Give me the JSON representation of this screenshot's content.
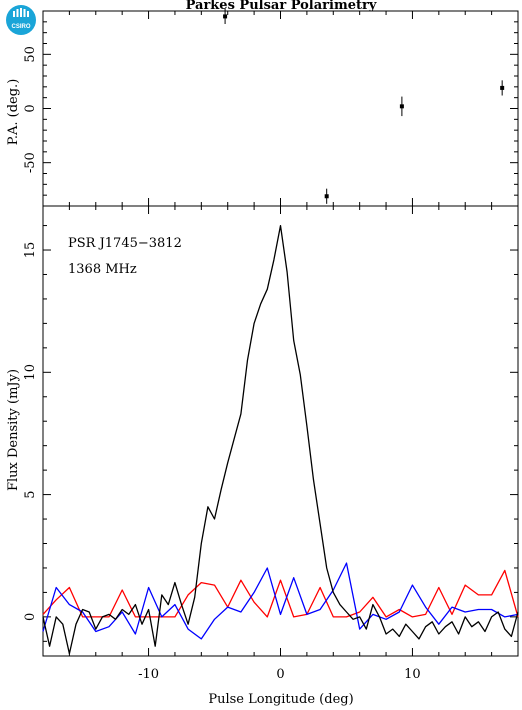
{
  "logo": {
    "text": "CSIRO",
    "color": "#1aa5d8"
  },
  "title": "Parkes Pulsar Polarimetry",
  "colors": {
    "total_intensity": "#000000",
    "linear": "#ff0000",
    "circular": "#0000ff"
  },
  "chart_data": [
    {
      "type": "scatter",
      "ylabel": "P.A. (deg.)",
      "xlim": [
        -18,
        18
      ],
      "ylim": [
        -90,
        90
      ],
      "yticks": [
        "-50",
        "0",
        "50"
      ],
      "points": [
        {
          "x": -4.2,
          "y": 85,
          "err": 7
        },
        {
          "x": 3.5,
          "y": -81,
          "err": 7
        },
        {
          "x": 9.2,
          "y": 2,
          "err": 9
        },
        {
          "x": 16.8,
          "y": 19,
          "err": 7
        }
      ]
    },
    {
      "type": "line",
      "xlabel": "Pulse Longitude (deg)",
      "ylabel": "Flux Density (mJy)",
      "xlim": [
        -18,
        18
      ],
      "ylim": [
        -1.6,
        16.8
      ],
      "xticks": [
        "-10",
        "0",
        "10"
      ],
      "yticks": [
        "0",
        "5",
        "10",
        "15"
      ],
      "annotations": [
        "PSR J1745−3812",
        "1368 MHz"
      ],
      "series": [
        {
          "color": "#000000",
          "x": [
            -18,
            -17.5,
            -17,
            -16.5,
            -16,
            -15.5,
            -15,
            -14.5,
            -14,
            -13.5,
            -13,
            -12.5,
            -12,
            -11.5,
            -11,
            -10.5,
            -10,
            -9.5,
            -9,
            -8.5,
            -8,
            -7.5,
            -7,
            -6.5,
            -6,
            -5.5,
            -5,
            -4.5,
            -4,
            -3.5,
            -3,
            -2.5,
            -2,
            -1.5,
            -1,
            -0.5,
            0,
            0.5,
            1,
            1.5,
            2,
            2.5,
            3,
            3.5,
            4,
            4.5,
            5,
            5.5,
            6,
            6.5,
            7,
            7.5,
            8,
            8.5,
            9,
            9.5,
            10,
            10.5,
            11,
            11.5,
            12,
            12.5,
            13,
            13.5,
            14,
            14.5,
            15,
            15.5,
            16,
            16.5,
            17,
            17.5,
            18
          ],
          "y": [
            0.0,
            -1.2,
            0.0,
            -0.3,
            -1.5,
            -0.3,
            0.3,
            0.2,
            -0.5,
            0.0,
            0.1,
            -0.1,
            0.3,
            0.1,
            0.5,
            -0.3,
            0.3,
            -1.2,
            0.9,
            0.5,
            1.4,
            0.5,
            -0.3,
            0.8,
            3.0,
            4.5,
            4.0,
            5.2,
            6.3,
            7.3,
            8.3,
            10.5,
            12.0,
            12.8,
            13.4,
            14.6,
            16.0,
            14.1,
            11.3,
            9.9,
            7.8,
            5.6,
            3.8,
            2.0,
            1.0,
            0.5,
            0.2,
            -0.1,
            0.0,
            -0.5,
            0.5,
            0.0,
            -0.7,
            -0.5,
            -0.8,
            -0.3,
            -0.6,
            -0.9,
            -0.4,
            -0.2,
            -0.7,
            -0.4,
            -0.2,
            -0.7,
            0.0,
            -0.4,
            -0.2,
            -0.6,
            0.0,
            0.2,
            -0.5,
            -0.8,
            0.2
          ]
        },
        {
          "color": "#ff0000",
          "x": [
            -18,
            -17,
            -16,
            -15,
            -14,
            -13,
            -12,
            -11,
            -10,
            -9,
            -8,
            -7,
            -6,
            -5,
            -4,
            -3,
            -2,
            -1,
            0,
            1,
            2,
            3,
            4,
            5,
            6,
            7,
            8,
            9,
            10,
            11,
            12,
            13,
            14,
            15,
            16,
            17,
            18
          ],
          "y": [
            0.1,
            0.7,
            1.2,
            0.0,
            0.0,
            0.0,
            1.1,
            0.0,
            0.0,
            0.0,
            0.0,
            0.9,
            1.4,
            1.3,
            0.4,
            1.5,
            0.6,
            0.0,
            1.5,
            0.0,
            0.1,
            1.2,
            0.0,
            0.0,
            0.2,
            0.8,
            0.0,
            0.3,
            0.0,
            0.1,
            1.2,
            0.1,
            1.3,
            0.9,
            0.9,
            1.9,
            0.0
          ]
        },
        {
          "color": "#0000ff",
          "x": [
            -18,
            -17,
            -16,
            -15,
            -14,
            -13,
            -12,
            -11,
            -10,
            -9,
            -8,
            -7,
            -6,
            -5,
            -4,
            -3,
            -2,
            -1,
            0,
            1,
            2,
            3,
            4,
            5,
            6,
            7,
            8,
            9,
            10,
            11,
            12,
            13,
            14,
            15,
            16,
            17,
            18
          ],
          "y": [
            -0.6,
            1.2,
            0.5,
            0.2,
            -0.6,
            -0.4,
            0.2,
            -0.7,
            1.2,
            0.0,
            0.5,
            -0.5,
            -0.9,
            -0.1,
            0.4,
            0.2,
            1.0,
            2.0,
            0.1,
            1.6,
            0.1,
            0.3,
            1.1,
            2.2,
            -0.5,
            0.1,
            -0.1,
            0.2,
            1.3,
            0.4,
            -0.3,
            0.4,
            0.2,
            0.3,
            0.3,
            0.0,
            0.1
          ]
        }
      ]
    }
  ]
}
